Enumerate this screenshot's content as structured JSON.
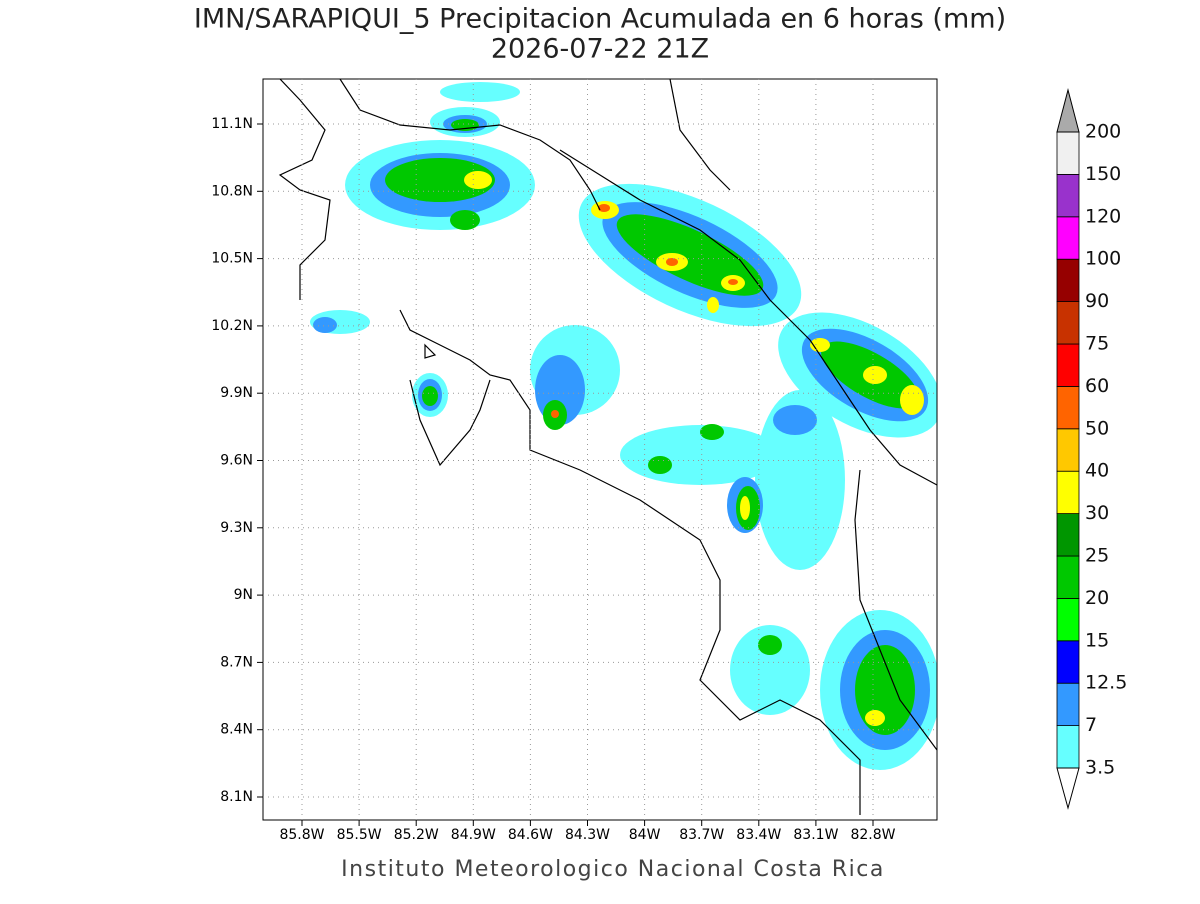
{
  "header": {
    "title": "IMN/SARAPIQUI_5 Precipitacion Acumulada en 6 horas (mm)",
    "subtitle": "2026-07-22 21Z"
  },
  "map": {
    "lat_ticks": [
      "11.1N",
      "10.8N",
      "10.5N",
      "10.2N",
      "9.9N",
      "9.6N",
      "9.3N",
      "9N",
      "8.7N",
      "8.4N",
      "8.1N"
    ],
    "lon_ticks": [
      "85.8W",
      "85.5W",
      "85.2W",
      "84.9W",
      "84.6W",
      "84.3W",
      "84W",
      "83.7W",
      "83.4W",
      "83.1W",
      "82.8W"
    ]
  },
  "colorbar": {
    "levels": [
      3.5,
      7,
      12.5,
      15,
      20,
      25,
      30,
      40,
      50,
      60,
      75,
      90,
      100,
      120,
      150,
      200
    ],
    "colors": [
      "#66ffff",
      "#3399ff",
      "#0000ff",
      "#00ff00",
      "#00c800",
      "#009600",
      "#ffff00",
      "#ffc800",
      "#ff6400",
      "#ff0000",
      "#c83200",
      "#960000",
      "#ff00ff",
      "#9932cc",
      "#f0f0f0"
    ],
    "under_color": "#ffffff",
    "over_color": "#aaaaaa"
  },
  "footer": "Instituto Meteorologico Nacional Costa Rica"
}
